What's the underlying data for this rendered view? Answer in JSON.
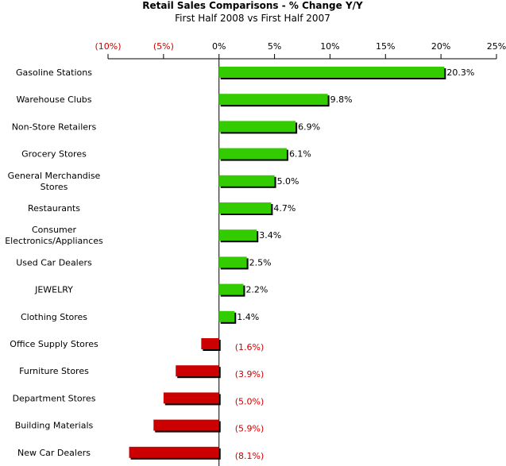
{
  "chart_data": {
    "type": "bar",
    "orientation": "horizontal",
    "title": "Retail Sales Comparisons - % Change Y/Y",
    "subtitle": "First Half 2008 vs First Half 2007",
    "xlim": [
      -10,
      25
    ],
    "ticks": [
      -10,
      -5,
      0,
      5,
      10,
      15,
      20,
      25
    ],
    "tick_labels": [
      "(10%)",
      "(5%)",
      "0%",
      "5%",
      "10%",
      "15%",
      "20%",
      "25%"
    ],
    "tick_position": "top",
    "grid": false,
    "categories": [
      "Gasoline Stations",
      "Warehouse Clubs",
      "Non-Store Retailers",
      "Grocery Stores",
      "General Merchandise Stores",
      "Restaurants",
      "Consumer Electronics/Appliances",
      "Used Car Dealers",
      "JEWELRY",
      "Clothing Stores",
      "Office Supply Stores",
      "Furniture Stores",
      "Department Stores",
      "Building Materials",
      "New Car Dealers"
    ],
    "category_lines": [
      [
        "Gasoline Stations"
      ],
      [
        "Warehouse Clubs"
      ],
      [
        "Non-Store Retailers"
      ],
      [
        "Grocery Stores"
      ],
      [
        "General Merchandise",
        "Stores"
      ],
      [
        "Restaurants"
      ],
      [
        "Consumer",
        "Electronics/Appliances"
      ],
      [
        "Used Car Dealers"
      ],
      [
        "JEWELRY"
      ],
      [
        "Clothing Stores"
      ],
      [
        "Office Supply Stores"
      ],
      [
        "Furniture Stores"
      ],
      [
        "Department Stores"
      ],
      [
        "Building Materials"
      ],
      [
        "New Car Dealers"
      ]
    ],
    "values": [
      20.3,
      9.8,
      6.9,
      6.1,
      5.0,
      4.7,
      3.4,
      2.5,
      2.2,
      1.4,
      -1.6,
      -3.9,
      -5.0,
      -5.9,
      -8.1
    ],
    "value_labels": [
      "20.3%",
      "9.8%",
      "6.9%",
      "6.1%",
      "5.0%",
      "4.7%",
      "3.4%",
      "2.5%",
      "2.2%",
      "1.4%",
      "(1.6%)",
      "(3.9%)",
      "(5.0%)",
      "(5.9%)",
      "(8.1%)"
    ],
    "colors": {
      "positive_bar": "#33cc00",
      "negative_bar": "#cc0000",
      "negative_text": "#cc0000",
      "positive_text": "#000000",
      "bar_shadow": "#000000",
      "axis": "#000000"
    }
  }
}
